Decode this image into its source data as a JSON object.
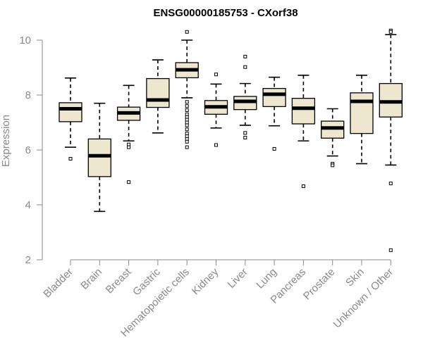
{
  "chart_data": {
    "type": "boxplot",
    "title": "ENSG00000185753 - CXorf38",
    "xlabel": "",
    "ylabel": "Expression",
    "ylim": [
      2,
      10.4
    ],
    "yticks": [
      2,
      4,
      6,
      8,
      10
    ],
    "categories": [
      "Bladder",
      "Brain",
      "Breast",
      "Gastric",
      "Hematopoietic cells",
      "Kidney",
      "Liver",
      "Lung",
      "Pancreas",
      "Prostate",
      "Skin",
      "Unknown / Other"
    ],
    "boxes": [
      {
        "whisker_low": 6.1,
        "q1": 7.03,
        "median": 7.5,
        "q3": 7.72,
        "whisker_high": 8.62,
        "outliers": [
          5.68
        ]
      },
      {
        "whisker_low": 3.76,
        "q1": 5.03,
        "median": 5.79,
        "q3": 6.4,
        "whisker_high": 7.7,
        "outliers": []
      },
      {
        "whisker_low": 6.33,
        "q1": 7.08,
        "median": 7.35,
        "q3": 7.56,
        "whisker_high": 8.35,
        "outliers": [
          6.2,
          6.1,
          4.83
        ]
      },
      {
        "whisker_low": 6.62,
        "q1": 7.55,
        "median": 7.82,
        "q3": 8.6,
        "whisker_high": 9.28,
        "outliers": []
      },
      {
        "whisker_low": 7.9,
        "q1": 8.63,
        "median": 8.92,
        "q3": 9.18,
        "whisker_high": 10.0,
        "outliers": [
          10.3,
          7.75,
          7.6,
          7.45,
          7.3,
          7.2,
          7.1,
          7.0,
          6.9,
          6.75,
          6.6,
          6.5,
          6.4,
          6.3,
          6.1
        ]
      },
      {
        "whisker_low": 6.8,
        "q1": 7.3,
        "median": 7.57,
        "q3": 7.8,
        "whisker_high": 8.4,
        "outliers": [
          8.75,
          6.18
        ]
      },
      {
        "whisker_low": 6.9,
        "q1": 7.47,
        "median": 7.77,
        "q3": 7.95,
        "whisker_high": 8.42,
        "outliers": [
          9.4,
          9.02,
          6.62,
          6.45
        ]
      },
      {
        "whisker_low": 6.88,
        "q1": 7.58,
        "median": 8.03,
        "q3": 8.24,
        "whisker_high": 8.65,
        "outliers": [
          6.04
        ]
      },
      {
        "whisker_low": 6.33,
        "q1": 6.95,
        "median": 7.52,
        "q3": 7.88,
        "whisker_high": 8.72,
        "outliers": [
          4.68
        ]
      },
      {
        "whisker_low": 5.78,
        "q1": 6.43,
        "median": 6.8,
        "q3": 7.05,
        "whisker_high": 7.5,
        "outliers": [
          5.5,
          5.44
        ]
      },
      {
        "whisker_low": 5.5,
        "q1": 6.6,
        "median": 7.77,
        "q3": 8.08,
        "whisker_high": 8.72,
        "outliers": []
      },
      {
        "whisker_low": 5.45,
        "q1": 7.2,
        "median": 7.75,
        "q3": 8.42,
        "whisker_high": 10.2,
        "outliers": [
          10.35,
          10.3,
          4.78,
          2.35
        ]
      }
    ],
    "box_fill": "#ede7d0",
    "box_stroke": "#000000",
    "axis_color": "#8a8a8a",
    "grid": false,
    "legend": "none"
  }
}
